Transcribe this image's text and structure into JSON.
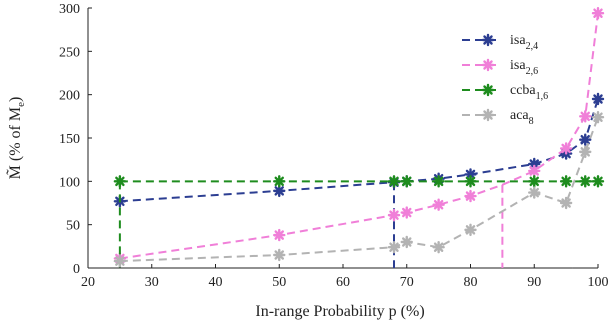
{
  "chart_data": {
    "type": "line",
    "xlabel": "In-range Probability p (%)",
    "ylabel": "M̃ (% of Me)",
    "xlim": [
      20,
      100
    ],
    "ylim": [
      0,
      300
    ],
    "xticks": [
      20,
      30,
      40,
      50,
      60,
      70,
      80,
      90,
      100
    ],
    "yticks": [
      0,
      50,
      100,
      150,
      200,
      250,
      300
    ],
    "grid": false,
    "legend": "top-right",
    "series": [
      {
        "name": "isa2,4",
        "base": "isa",
        "sub": "2,4",
        "color": "#2c3e92",
        "x": [
          25,
          50,
          68,
          70,
          75,
          80,
          90,
          95,
          98,
          100
        ],
        "y": [
          77,
          89,
          99,
          100,
          103,
          108,
          120,
          132,
          148,
          195
        ],
        "drop": 68
      },
      {
        "name": "isa2,6",
        "base": "isa",
        "sub": "2,6",
        "color": "#f07fd8",
        "x": [
          25,
          50,
          68,
          70,
          75,
          80,
          85,
          90,
          95,
          98,
          100
        ],
        "y": [
          11,
          38,
          61,
          64,
          73,
          83,
          96,
          112,
          138,
          175,
          294
        ],
        "drop": 85,
        "marker_indices": [
          0,
          1,
          2,
          3,
          4,
          5,
          7,
          8,
          9,
          10
        ]
      },
      {
        "name": "ccba1,6",
        "base": "ccba",
        "sub": "1,6",
        "color": "#1e8c1e",
        "x": [
          25,
          50,
          68,
          70,
          75,
          80,
          90,
          95,
          98,
          100
        ],
        "y": [
          100,
          100,
          100,
          100,
          100,
          100,
          100,
          100,
          100,
          100
        ],
        "drop": 25
      },
      {
        "name": "aca8",
        "base": "aca",
        "sub": "8",
        "color": "#b3b3b3",
        "x": [
          25,
          50,
          68,
          70,
          75,
          80,
          90,
          95,
          98,
          100
        ],
        "y": [
          8,
          15,
          24,
          30,
          24,
          44,
          87,
          75,
          134,
          174
        ],
        "drop": 96
      }
    ]
  }
}
